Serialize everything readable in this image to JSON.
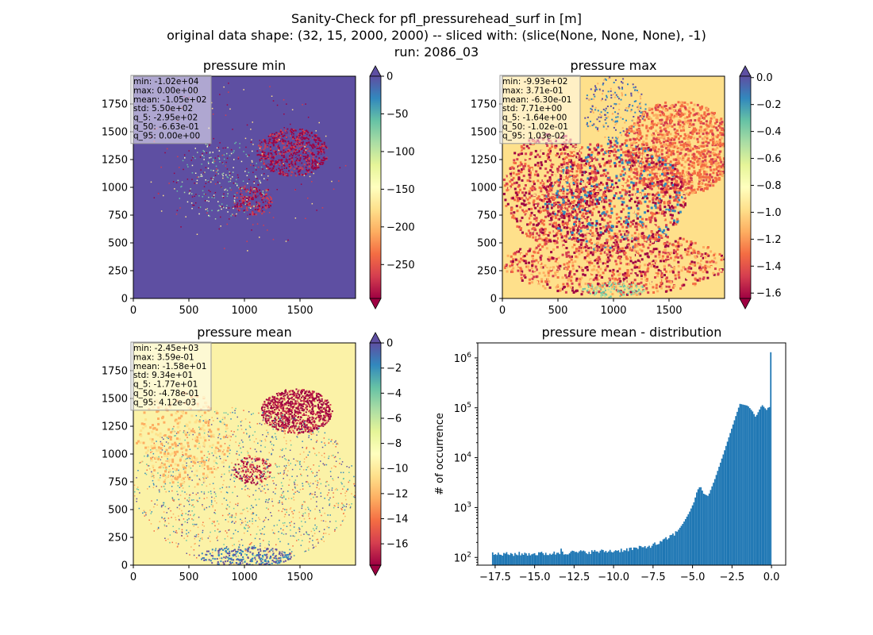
{
  "figure": {
    "title_lines": [
      "Sanity-Check for pfl_pressurehead_surf in [m]",
      "original data shape: (32, 15, 2000, 2000) -- sliced with: (slice(None, None, None), -1)",
      "run: 2086_03"
    ]
  },
  "colors": {
    "spectral_scale": [
      "#9e0142",
      "#d53e4f",
      "#f46d43",
      "#fdae61",
      "#fee08b",
      "#ffffbf",
      "#e6f598",
      "#abdda4",
      "#66c2a5",
      "#3288bd",
      "#5e4fa2"
    ],
    "hist_bar": "#1f77b4"
  },
  "chart_data": [
    {
      "type": "heatmap",
      "title": "pressure min",
      "x_ticks": [
        "0",
        "500",
        "1000",
        "1500"
      ],
      "y_ticks": [
        "0",
        "250",
        "500",
        "750",
        "1000",
        "1250",
        "1500",
        "1750"
      ],
      "xlim": [
        0,
        2000
      ],
      "ylim": [
        0,
        2000
      ],
      "colorbar": {
        "range": [
          -295,
          0
        ],
        "ticks": [
          "0",
          "−50",
          "−100",
          "−150",
          "−200",
          "−250"
        ],
        "extend": "both"
      },
      "stats": [
        "min: -1.02e+04",
        "max: 0.00e+00",
        "mean: -1.05e+02",
        "std: 5.50e+02",
        "q_5: -2.95e+02",
        "q_50: -6.63e-01",
        "q_95: 0.00e+00"
      ]
    },
    {
      "type": "heatmap",
      "title": "pressure max",
      "x_ticks": [
        "0",
        "500",
        "1000",
        "1500"
      ],
      "y_ticks": [
        "0",
        "250",
        "500",
        "750",
        "1000",
        "1250",
        "1500",
        "1750"
      ],
      "xlim": [
        0,
        2000
      ],
      "ylim": [
        0,
        2000
      ],
      "colorbar": {
        "range": [
          -1.64,
          0.0103
        ],
        "ticks": [
          "0.0",
          "−0.2",
          "−0.4",
          "−0.6",
          "−0.8",
          "−1.0",
          "−1.2",
          "−1.4",
          "−1.6"
        ],
        "extend": "both"
      },
      "stats": [
        "min: -9.93e+02",
        "max: 3.71e-01",
        "mean: -6.30e-01",
        "std: 7.71e+00",
        "q_5: -1.64e+00",
        "q_50: -1.02e-01",
        "q_95: 1.03e-02"
      ]
    },
    {
      "type": "heatmap",
      "title": "pressure mean",
      "x_ticks": [
        "0",
        "500",
        "1000",
        "1500"
      ],
      "y_ticks": [
        "0",
        "250",
        "500",
        "750",
        "1000",
        "1250",
        "1500",
        "1750"
      ],
      "xlim": [
        0,
        2000
      ],
      "ylim": [
        0,
        2000
      ],
      "colorbar": {
        "range": [
          -17.7,
          0.004
        ],
        "ticks": [
          "0",
          "−2",
          "−4",
          "−6",
          "−8",
          "−10",
          "−12",
          "−14",
          "−16"
        ],
        "extend": "both"
      },
      "stats": [
        "min: -2.45e+03",
        "max: 3.59e-01",
        "mean: -1.58e+01",
        "std: 9.34e+01",
        "q_5: -1.77e+01",
        "q_50: -4.78e-01",
        "q_95: 4.12e-03"
      ]
    },
    {
      "type": "bar",
      "title": "pressure mean - distribution",
      "ylabel": "# of occurrence",
      "xlabel": "",
      "x_ticks": [
        "−17.5",
        "−15.0",
        "−12.5",
        "−10.0",
        "−7.5",
        "−5.0",
        "−2.5",
        "0.0"
      ],
      "y_scale": "log",
      "xlim": [
        -18.6,
        0.9
      ],
      "ylim": [
        70,
        2000000
      ],
      "bin_range": [
        -17.7,
        0.0
      ],
      "bin_count": 200,
      "profile_x": [
        -17.7,
        -16.0,
        -14.0,
        -13.4,
        -13.3,
        -13.2,
        -12.0,
        -10.0,
        -8.0,
        -7.0,
        -6.0,
        -5.6,
        -5.2,
        -4.9,
        -4.7,
        -4.5,
        -4.3,
        -4.0,
        -3.6,
        -3.0,
        -2.5,
        -2.0,
        -1.5,
        -1.2,
        -1.0,
        -0.6,
        -0.3,
        -0.15,
        -0.08,
        -0.01
      ],
      "profile_y": [
        115,
        118,
        120,
        123,
        160,
        125,
        128,
        135,
        160,
        200,
        320,
        480,
        800,
        1300,
        2200,
        2700,
        1900,
        1700,
        3600,
        13000,
        40000,
        120000,
        110000,
        85000,
        65000,
        115000,
        90000,
        110000,
        85000,
        1300000
      ]
    }
  ]
}
